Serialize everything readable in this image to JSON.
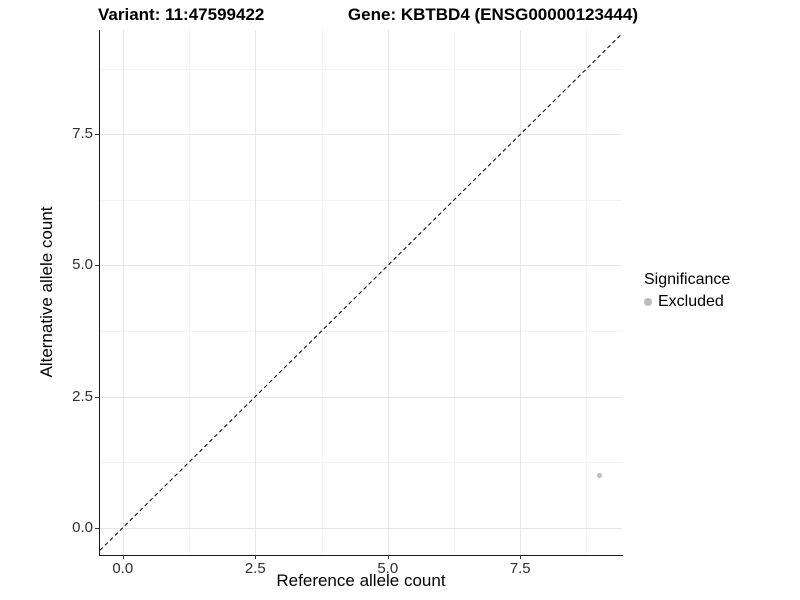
{
  "title": {
    "variant": "Variant: 11:47599422",
    "gene": "Gene: KBTBD4 (ENSG00000123444)"
  },
  "axes": {
    "x_label": "Reference allele count",
    "y_label": "Alternative allele count",
    "x_ticks": [
      "0.0",
      "2.5",
      "5.0",
      "7.5"
    ],
    "y_ticks": [
      "0.0",
      "2.5",
      "5.0",
      "7.5"
    ]
  },
  "legend": {
    "title": "Significance",
    "items": [
      {
        "label": "Excluded",
        "color": "#bdbdbd"
      }
    ]
  },
  "chart_data": {
    "type": "scatter",
    "title": "Variant: 11:47599422   Gene: KBTBD4 (ENSG00000123444)",
    "xlabel": "Reference allele count",
    "ylabel": "Alternative allele count",
    "xlim": [
      -0.43,
      9.42
    ],
    "ylim": [
      -0.52,
      9.49
    ],
    "x_ticks": [
      0,
      2.5,
      5,
      7.5
    ],
    "y_ticks": [
      0,
      2.5,
      5,
      7.5
    ],
    "x_minor_ticks": [
      1.25,
      3.75,
      6.25,
      8.75
    ],
    "y_minor_ticks": [
      1.25,
      3.75,
      6.25,
      8.75
    ],
    "grid": true,
    "legend_position": "right",
    "series": [
      {
        "name": "Excluded",
        "color": "#bdbdbd",
        "points": [
          {
            "x": 9,
            "y": 1
          }
        ]
      }
    ],
    "reference_line": {
      "kind": "identity y = x",
      "style": "dashed",
      "color": "#111111"
    }
  }
}
